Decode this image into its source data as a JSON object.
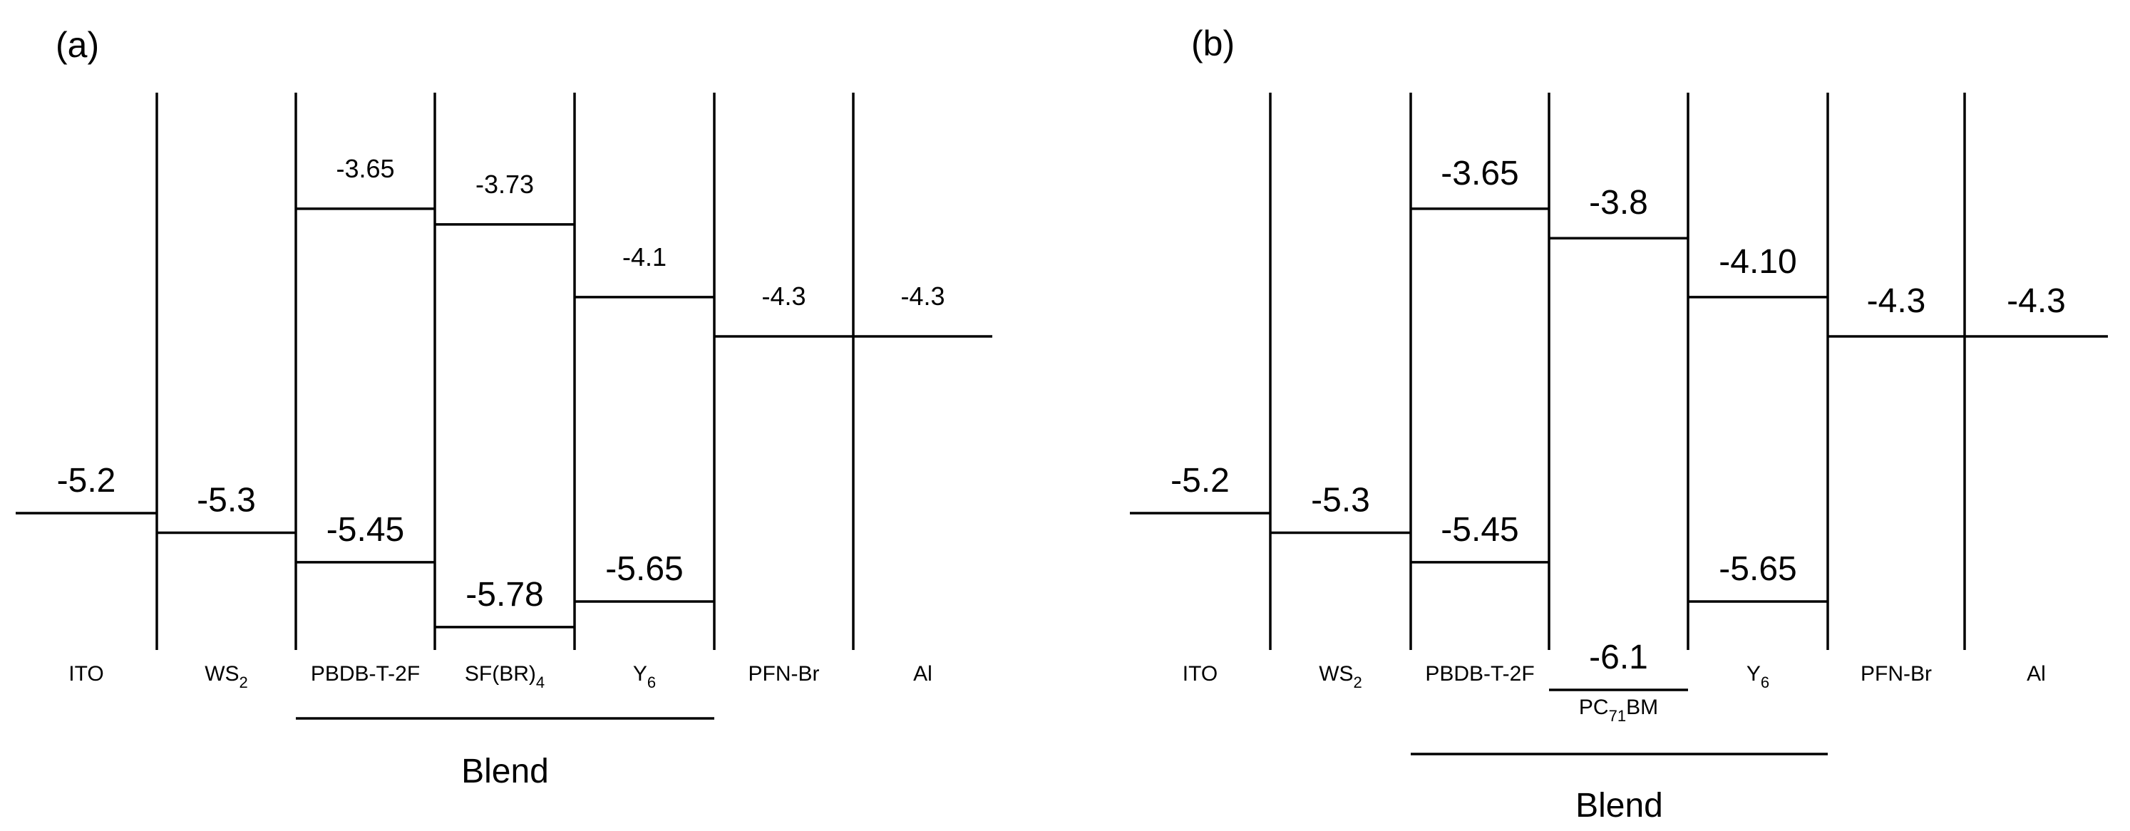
{
  "panels": [
    {
      "label": "(a)",
      "columns": [
        {
          "id": "ito",
          "name": "ITO",
          "levels": [
            {
              "value": "-5.2"
            }
          ]
        },
        {
          "id": "ws2",
          "name": "WS",
          "sub": "2",
          "levels": [
            {
              "value": "-5.3"
            }
          ]
        },
        {
          "id": "pbdb",
          "name": "PBDB-T-2F",
          "levels": [
            {
              "value": "-3.65"
            },
            {
              "value": "-5.45"
            }
          ]
        },
        {
          "id": "acc",
          "name": "SF(BR)",
          "sub": "4",
          "levels": [
            {
              "value": "-3.73"
            },
            {
              "value": "-5.78"
            }
          ]
        },
        {
          "id": "y6",
          "name": "Y",
          "sub": "6",
          "levels": [
            {
              "value": "-4.1"
            },
            {
              "value": "-5.65"
            }
          ]
        },
        {
          "id": "pfn",
          "name": "PFN-Br",
          "levels": [
            {
              "value": "-4.3"
            }
          ]
        },
        {
          "id": "al",
          "name": "Al",
          "levels": [
            {
              "value": "-4.3"
            }
          ]
        }
      ],
      "blend_label": "Blend"
    },
    {
      "label": "(b)",
      "columns": [
        {
          "id": "ito",
          "name": "ITO",
          "levels": [
            {
              "value": "-5.2"
            }
          ]
        },
        {
          "id": "ws2",
          "name": "WS",
          "sub": "2",
          "levels": [
            {
              "value": "-5.3"
            }
          ]
        },
        {
          "id": "pbdb",
          "name": "PBDB-T-2F",
          "levels": [
            {
              "value": "-3.65"
            },
            {
              "value": "-5.45"
            }
          ]
        },
        {
          "id": "acc",
          "name": "PC",
          "sub": "71",
          "suffix": "BM",
          "levels": [
            {
              "value": "-3.8"
            },
            {
              "value": "-6.1"
            }
          ]
        },
        {
          "id": "y6",
          "name": "Y",
          "sub": "6",
          "levels": [
            {
              "value": "-4.10"
            },
            {
              "value": "-5.65"
            }
          ]
        },
        {
          "id": "pfn",
          "name": "PFN-Br",
          "levels": [
            {
              "value": "-4.3"
            }
          ]
        },
        {
          "id": "al",
          "name": "Al",
          "levels": [
            {
              "value": "-4.3"
            }
          ]
        }
      ],
      "blend_label": "Blend"
    }
  ]
}
